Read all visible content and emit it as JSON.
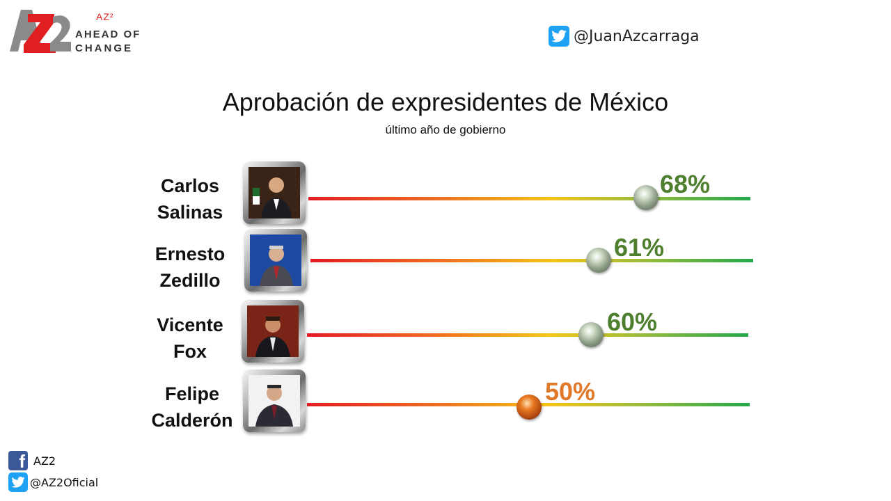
{
  "brand": {
    "logo_mark_text": "AZ2",
    "superscript": "AZ²",
    "line1": "AHEAD OF",
    "line2": "CHANGE"
  },
  "header": {
    "twitter_handle": "@JuanAzcarraga"
  },
  "chart_data": {
    "type": "bar",
    "title": "Aprobación de expresidentes de México",
    "subtitle": "último año de gobierno",
    "xlim": [
      0,
      100
    ],
    "categories": [
      "Carlos Salinas",
      "Ernesto Zedillo",
      "Vicente Fox",
      "Felipe Calderón"
    ],
    "values": [
      68,
      61,
      60,
      50
    ],
    "rows": [
      {
        "name_line1": "Carlos",
        "name_line2": "Salinas",
        "value": 68,
        "label": "68%",
        "color": "#4e7f2e"
      },
      {
        "name_line1": "Ernesto",
        "name_line2": "Zedillo",
        "value": 61,
        "label": "61%",
        "color": "#4e7f2e"
      },
      {
        "name_line1": "Vicente",
        "name_line2": "Fox",
        "value": 60,
        "label": "60%",
        "color": "#4e7f2e"
      },
      {
        "name_line1": "Felipe",
        "name_line2": "Calderón",
        "value": 50,
        "label": "50%",
        "color": "#e07a2a"
      }
    ]
  },
  "footer": {
    "facebook_label": "AZ2",
    "twitter_label": "@AZ2Oficial"
  },
  "colors": {
    "twitter": "#1da1f2",
    "facebook": "#3b5998",
    "logo_red": "#e02020",
    "logo_gray": "#8a8a8a"
  }
}
